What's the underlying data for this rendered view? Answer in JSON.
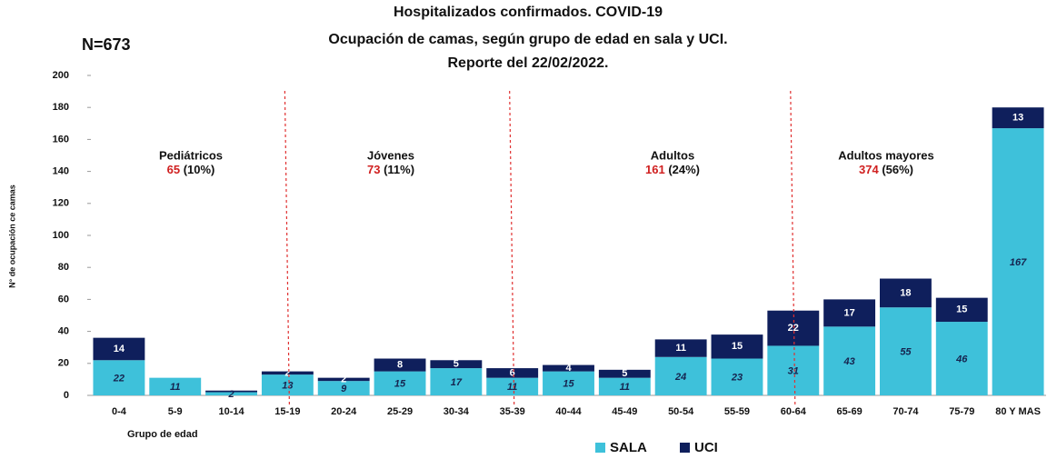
{
  "chart_data": {
    "type": "stacked_bar",
    "title_lines": [
      "Hospitalizados confirmados. COVID-19",
      "Ocupación de camas, según grupo de edad en sala y UCI.",
      "Reporte del  22/02/2022."
    ],
    "n_label": "N=673",
    "y_label": "N° de ocupación  ce camas",
    "x_label": "Grupo de edad",
    "categories": [
      "0-4",
      "5-9",
      "10-14",
      "15-19",
      "20-24",
      "25-29",
      "30-34",
      "35-39",
      "40-44",
      "45-49",
      "50-54",
      "55-59",
      "60-64",
      "65-69",
      "70-74",
      "75-79",
      "80 Y MAS"
    ],
    "series": [
      {
        "name": "SALA",
        "color": "#3ec1da",
        "values": [
          22,
          11,
          2,
          13,
          9,
          15,
          17,
          11,
          15,
          11,
          24,
          23,
          31,
          43,
          55,
          46,
          167
        ]
      },
      {
        "name": "UCI",
        "color": "#0f1f5c",
        "values": [
          14,
          0,
          1,
          2,
          2,
          8,
          5,
          6,
          4,
          5,
          11,
          15,
          22,
          17,
          18,
          15,
          13
        ],
        "value_labels": [
          "14",
          null,
          null,
          "2",
          "2",
          "8",
          "5",
          "6",
          "4",
          "5",
          "11",
          "15",
          "22",
          "17",
          "18",
          "15",
          "13"
        ]
      }
    ],
    "groups": [
      {
        "name": "Pediátricos",
        "count": 65,
        "share": "(10%)"
      },
      {
        "name": "Jóvenes",
        "count": 73,
        "share": "(11%)"
      },
      {
        "name": "Adultos",
        "count": 161,
        "share": "(24%)"
      },
      {
        "name": "Adultos mayores",
        "count": 374,
        "share": "(56%)"
      }
    ],
    "ylim": [
      0,
      200
    ],
    "yticks": [
      0,
      20,
      40,
      60,
      80,
      100,
      120,
      140,
      160,
      180,
      200
    ],
    "grid": false,
    "legend": "bottom"
  }
}
